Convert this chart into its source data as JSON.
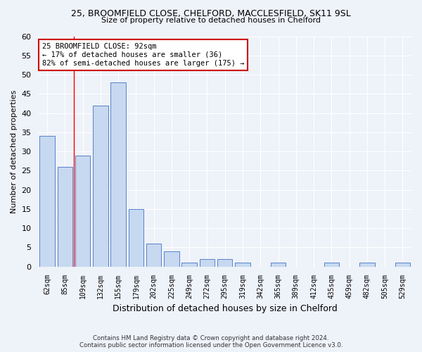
{
  "title": "25, BROOMFIELD CLOSE, CHELFORD, MACCLESFIELD, SK11 9SL",
  "subtitle": "Size of property relative to detached houses in Chelford",
  "xlabel": "Distribution of detached houses by size in Chelford",
  "ylabel": "Number of detached properties",
  "categories": [
    "62sqm",
    "85sqm",
    "109sqm",
    "132sqm",
    "155sqm",
    "179sqm",
    "202sqm",
    "225sqm",
    "249sqm",
    "272sqm",
    "295sqm",
    "319sqm",
    "342sqm",
    "365sqm",
    "389sqm",
    "412sqm",
    "435sqm",
    "459sqm",
    "482sqm",
    "505sqm",
    "529sqm"
  ],
  "values": [
    34,
    26,
    29,
    42,
    48,
    15,
    6,
    4,
    1,
    2,
    2,
    1,
    0,
    1,
    0,
    0,
    1,
    0,
    1,
    0,
    1
  ],
  "bar_color": "#c6d9f0",
  "bar_edge_color": "#4472c4",
  "ylim": [
    0,
    60
  ],
  "yticks": [
    0,
    5,
    10,
    15,
    20,
    25,
    30,
    35,
    40,
    45,
    50,
    55,
    60
  ],
  "property_sqm": 92,
  "annotation_text": "25 BROOMFIELD CLOSE: 92sqm\n← 17% of detached houses are smaller (36)\n82% of semi-detached houses are larger (175) →",
  "annotation_box_color": "#ffffff",
  "annotation_box_edge_color": "#cc0000",
  "red_line_x": 1.5,
  "footer_line1": "Contains HM Land Registry data © Crown copyright and database right 2024.",
  "footer_line2": "Contains public sector information licensed under the Open Government Licence v3.0.",
  "background_color": "#eef2f9",
  "bar_width": 0.85
}
